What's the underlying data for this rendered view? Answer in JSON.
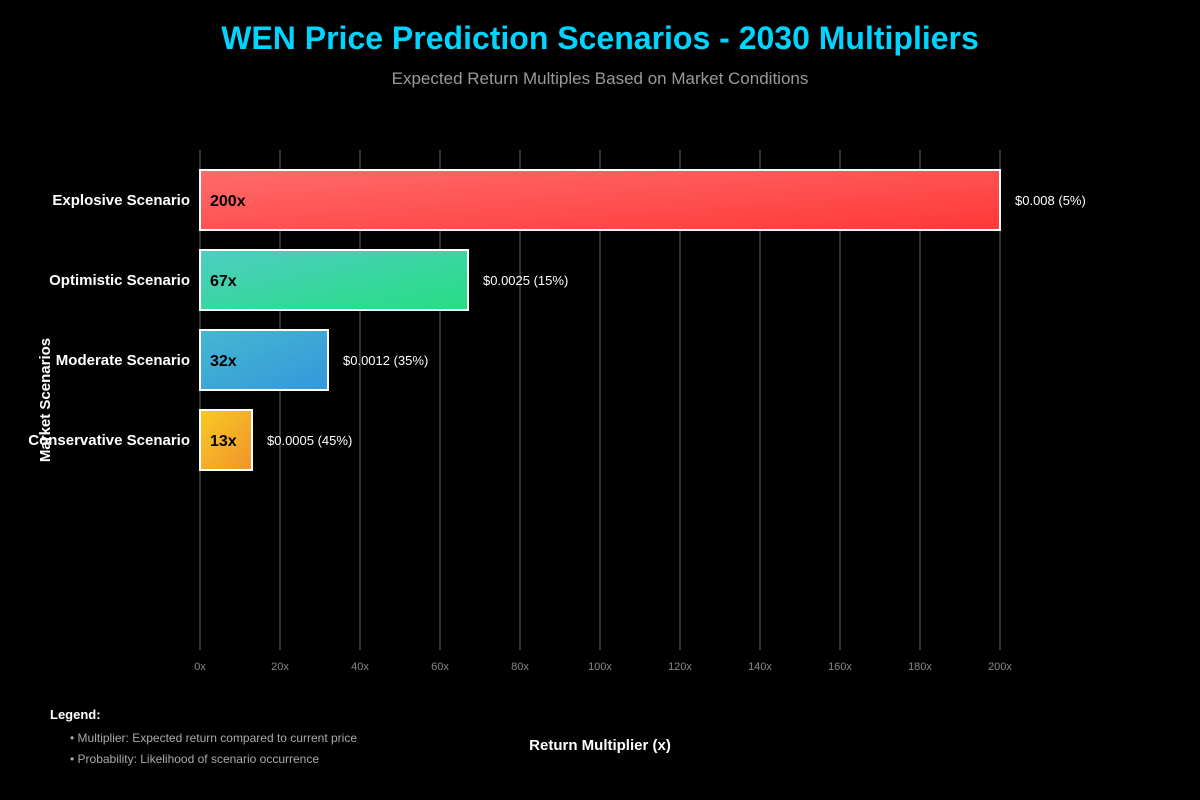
{
  "chart_data": {
    "type": "bar",
    "orientation": "horizontal",
    "title": "WEN Price Prediction Scenarios - 2030 Multipliers",
    "subtitle": "Expected Return Multiples Based on Market Conditions",
    "xlabel": "Return Multiplier (x)",
    "ylabel": "Market Scenarios",
    "xlim": [
      0,
      200
    ],
    "xticks": [
      "0x",
      "20x",
      "40x",
      "60x",
      "80x",
      "100x",
      "120x",
      "140x",
      "160x",
      "180x",
      "200x"
    ],
    "grid": true,
    "categories": [
      "Explosive Scenario",
      "Optimistic Scenario",
      "Moderate Scenario",
      "Conservative Scenario"
    ],
    "values": [
      200,
      67,
      32,
      13
    ],
    "bar_labels": [
      "200x",
      "67x",
      "32x",
      "13x"
    ],
    "annotations": [
      "$0.008 (5%)",
      "$0.0025 (15%)",
      "$0.0012 (35%)",
      "$0.0005 (45%)"
    ],
    "colors": [
      [
        "#ff6b6b",
        "#ff3838"
      ],
      [
        "#4ecdc4",
        "#26de81"
      ],
      [
        "#45b7d1",
        "#3498db"
      ],
      [
        "#f9ca24",
        "#f0932b"
      ]
    ],
    "title_color": "#00d4ff"
  },
  "legend": {
    "heading": "Legend:",
    "items": [
      "• Multiplier: Expected return compared to current price",
      "• Probability: Likelihood of scenario occurrence"
    ]
  }
}
